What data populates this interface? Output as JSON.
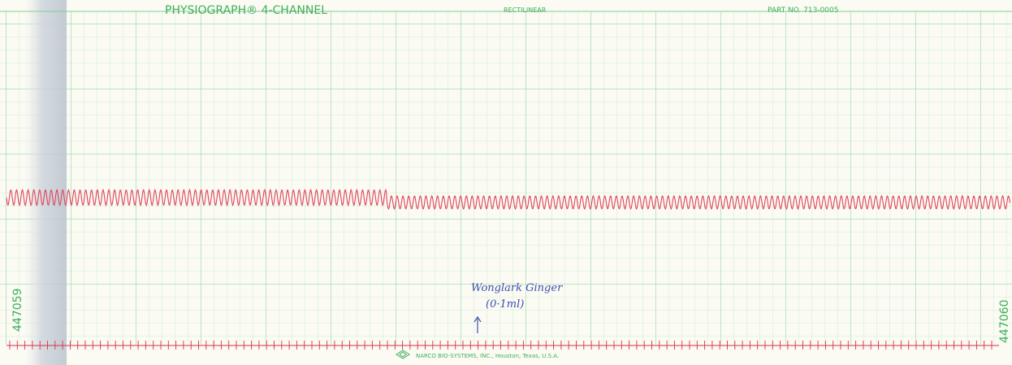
{
  "header": {
    "title": "PHYSIOGRAPH® 4-CHANNEL",
    "subtitle": "RECTILINEAR",
    "part_number": "PART NO. 713-0005"
  },
  "serial_numbers": [
    "447059",
    "447060"
  ],
  "annotation": [
    "Wonglark Ginger",
    "(0·1ml)"
  ],
  "footer": "NARCO BIO-SYSTEMS, INC., Houston, Texas, U.S.A."
}
